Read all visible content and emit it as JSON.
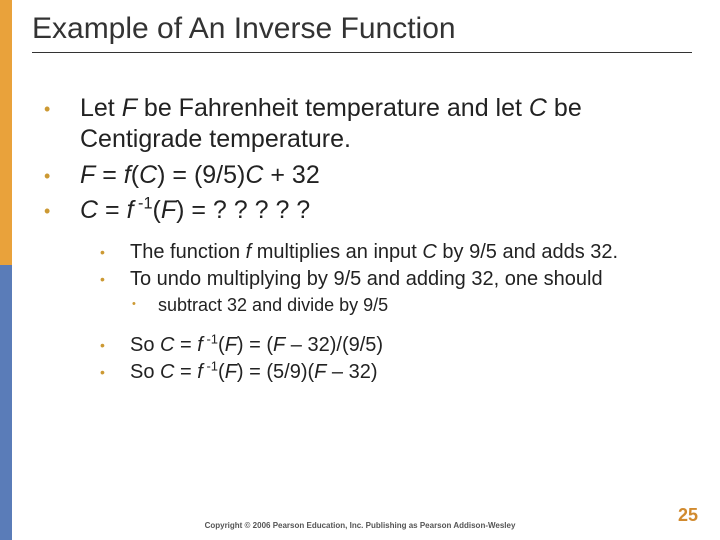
{
  "title": "Example of An Inverse Function",
  "bullets": {
    "b1a": "Let ",
    "b1b": " be Fahrenheit temperature and let ",
    "b1c": " be Centigrade temperature.",
    "b2a": " = ",
    "b2b": "(",
    "b2c": ") = (9/5)",
    "b2d": " + 32",
    "b3a": " = ",
    "b3b": "(",
    "b3c": ") = ? ? ? ? ?"
  },
  "sub": {
    "s1a": "The function ",
    "s1b": " multiplies an input ",
    "s1c": " by 9/5 and adds 32.",
    "s2": "To undo multiplying by 9/5 and adding 32, one should",
    "s3": "subtract 32 and divide by 9/5",
    "s4a": "So ",
    "s4b": " = ",
    "s4c": "(",
    "s4d": ") = (",
    "s4e": " – 32)/(9/5)",
    "s5a": "So ",
    "s5b": " = ",
    "s5c": "(",
    "s5d": ") = (5/9)(",
    "s5e": " – 32)"
  },
  "vars": {
    "F": "F",
    "C": "C",
    "f": "f",
    "inv": " -1"
  },
  "footer": "Copyright © 2006 Pearson Education, Inc. Publishing as Pearson Addison-Wesley",
  "page": "25",
  "colors": {
    "accent": "#cc9933",
    "sidebar_top": "#e9a23b",
    "sidebar_bottom": "#5a7cb8",
    "text": "#222222"
  }
}
